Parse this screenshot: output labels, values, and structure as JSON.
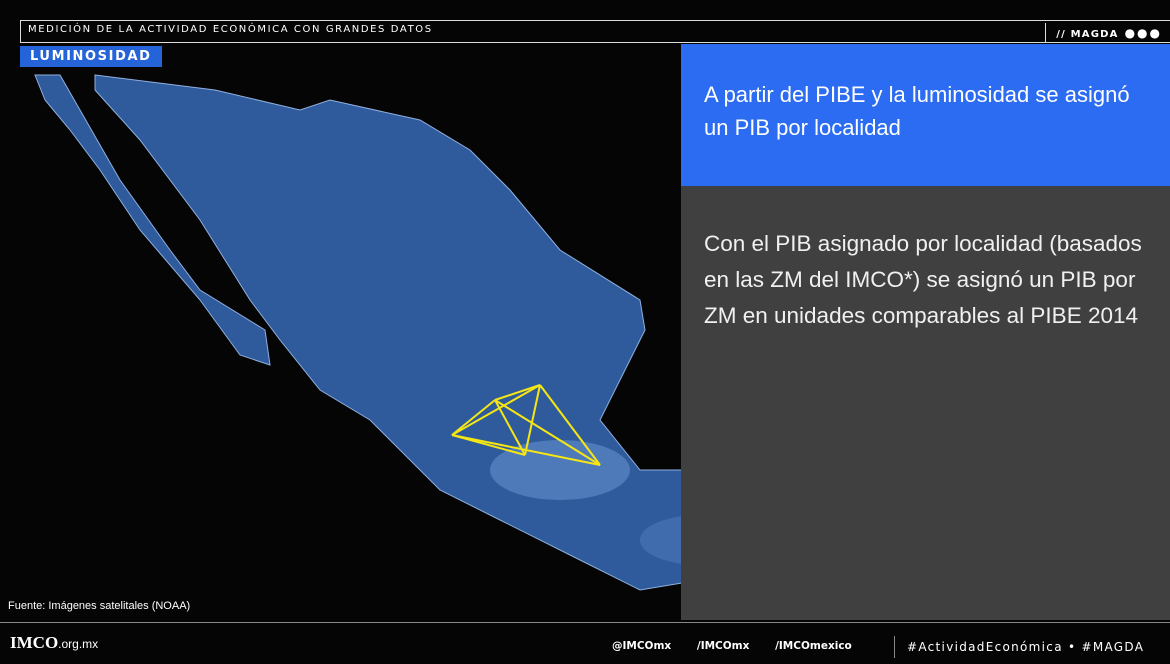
{
  "header": {
    "title": "MEDICIÓN DE LA ACTIVIDAD ECONÓMICA CON GRANDES DATOS",
    "brand": "// MAGDA"
  },
  "section_label": "LUMINOSIDAD",
  "panel": {
    "highlight": "A partir del PIBE y la luminosidad se asignó un PIB por localidad",
    "body": "Con el PIB asignado por localidad (basados en las ZM del IMCO*) se asignó un PIB por ZM en unidades comparables al PIBE 2014"
  },
  "source": "Fuente: Imágenes satelitales (NOAA)",
  "footer": {
    "logo_name": "IMCO",
    "logo_domain": ".org.mx",
    "social": [
      "@IMCOmx",
      "/IMCOmx",
      "/IMCOmexico"
    ],
    "hashtags": "#ActividadEconómica • #MAGDA"
  }
}
